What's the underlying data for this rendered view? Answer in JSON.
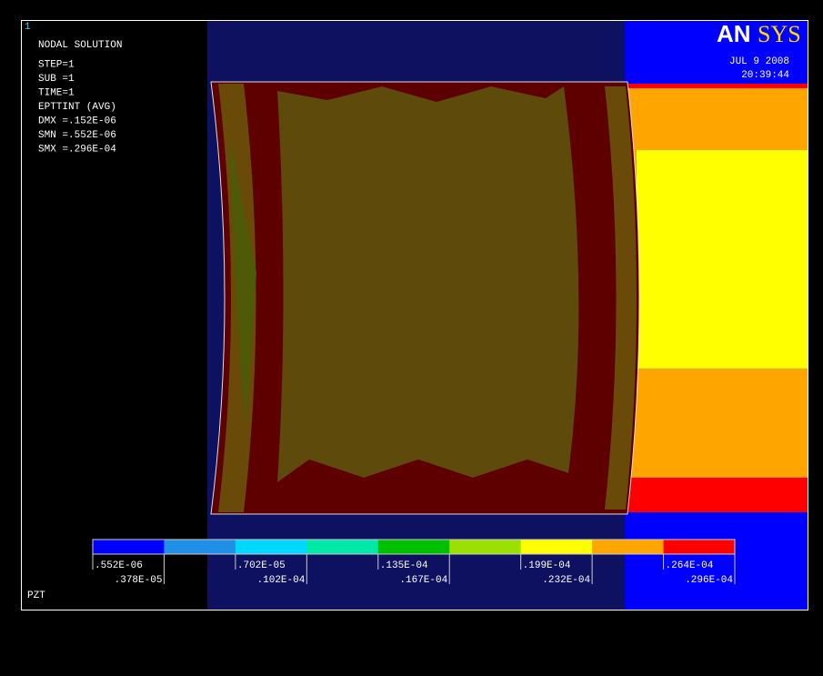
{
  "window_number": "1",
  "info": {
    "lines": [
      "NODAL SOLUTION",
      "STEP=1",
      "SUB =1",
      "TIME=1",
      "EPTTINT  (AVG)",
      "DMX =.152E-06",
      "SMN =.552E-06",
      "SMX =.296E-04"
    ]
  },
  "logo": {
    "part1": "AN",
    "part2": "SYS"
  },
  "date": "JUL  9 2008",
  "time": "20:39:44",
  "legend": {
    "labels": [
      ".552E-06",
      ".378E-05",
      ".702E-05",
      ".102E-04",
      ".135E-04",
      ".167E-04",
      ".199E-04",
      ".232E-04",
      ".264E-04",
      ".296E-04"
    ],
    "colors": [
      "#0000ff",
      "#1f8fe8",
      "#00d8ff",
      "#00e8a8",
      "#00c000",
      "#9ce000",
      "#ffff00",
      "#ffa500",
      "#ff0000"
    ]
  },
  "model_name": "PZT"
}
